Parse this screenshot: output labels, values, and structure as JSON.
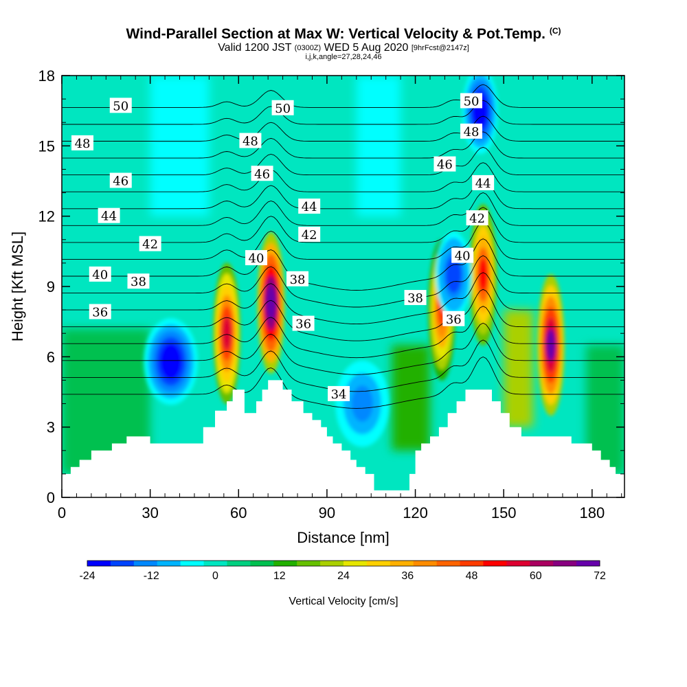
{
  "title": {
    "main": "Wind-Parallel Section at Max W: Vertical Velocity & Pot.Temp.",
    "copyright": "(C)",
    "valid_prefix": "Valid 1200 JST",
    "valid_utc": "(0300Z)",
    "valid_date": "WED 5 Aug 2020",
    "forecast": "[9hrFcst@2147z]",
    "section": "i,j,k,angle=27,28,24,46"
  },
  "chart_data": {
    "type": "heatmap",
    "xlabel": "Distance [nm]",
    "ylabel": "Height [Kft MSL]",
    "xlim": [
      0,
      191
    ],
    "ylim": [
      0,
      18
    ],
    "x_ticks": [
      "0",
      "30",
      "60",
      "90",
      "120",
      "150",
      "180"
    ],
    "y_ticks": [
      "0",
      "3",
      "6",
      "9",
      "12",
      "15",
      "18"
    ],
    "colorbar": {
      "label": "Vertical Velocity [cm/s]",
      "min": -24,
      "max": 72,
      "step": 4,
      "tick_labels": [
        "-24",
        "-12",
        "0",
        "12",
        "24",
        "36",
        "48",
        "60",
        "72"
      ],
      "colors": [
        "#0000ff",
        "#0044ff",
        "#0088ff",
        "#00b4ff",
        "#00ffff",
        "#00e6c0",
        "#00d080",
        "#00c050",
        "#22b000",
        "#66c000",
        "#aad000",
        "#e6e600",
        "#ffd000",
        "#ffb000",
        "#ff8c00",
        "#ff6400",
        "#ff3c00",
        "#ff0000",
        "#dd0030",
        "#aa0060",
        "#880080",
        "#6600aa"
      ]
    },
    "theta_contours": {
      "units": "potential temperature (labels)",
      "labels": [
        {
          "value": "50",
          "x": 20,
          "y": 16.7
        },
        {
          "value": "50",
          "x": 75,
          "y": 16.6
        },
        {
          "value": "50",
          "x": 139,
          "y": 16.9
        },
        {
          "value": "48",
          "x": 7,
          "y": 15.1
        },
        {
          "value": "48",
          "x": 64,
          "y": 15.2
        },
        {
          "value": "48",
          "x": 139,
          "y": 15.6
        },
        {
          "value": "46",
          "x": 20,
          "y": 13.5
        },
        {
          "value": "46",
          "x": 68,
          "y": 13.8
        },
        {
          "value": "46",
          "x": 130,
          "y": 14.2
        },
        {
          "value": "44",
          "x": 16,
          "y": 12.0
        },
        {
          "value": "44",
          "x": 84,
          "y": 12.4
        },
        {
          "value": "44",
          "x": 143,
          "y": 13.4
        },
        {
          "value": "42",
          "x": 30,
          "y": 10.8
        },
        {
          "value": "42",
          "x": 84,
          "y": 11.2
        },
        {
          "value": "42",
          "x": 141,
          "y": 11.9
        },
        {
          "value": "40",
          "x": 13,
          "y": 9.5
        },
        {
          "value": "40",
          "x": 66,
          "y": 10.2
        },
        {
          "value": "40",
          "x": 136,
          "y": 10.3
        },
        {
          "value": "38",
          "x": 26,
          "y": 9.2
        },
        {
          "value": "38",
          "x": 80,
          "y": 9.3
        },
        {
          "value": "38",
          "x": 120,
          "y": 8.5
        },
        {
          "value": "36",
          "x": 13,
          "y": 7.9
        },
        {
          "value": "36",
          "x": 82,
          "y": 7.4
        },
        {
          "value": "36",
          "x": 133,
          "y": 7.6
        },
        {
          "value": "34",
          "x": 94,
          "y": 4.4
        }
      ]
    },
    "terrain_kft": {
      "x": [
        0,
        3,
        6,
        10,
        13,
        17,
        20,
        22,
        25,
        30,
        35,
        40,
        45,
        48,
        52,
        56,
        58,
        60,
        62,
        64,
        66,
        68,
        70,
        71,
        73,
        75,
        78,
        80,
        82,
        85,
        88,
        90,
        92,
        95,
        98,
        100,
        103,
        106,
        110,
        114,
        118,
        120,
        122,
        125,
        128,
        131,
        134,
        137,
        140,
        143,
        146,
        149,
        152,
        156,
        160,
        163,
        166,
        170,
        173,
        176,
        180,
        183,
        186,
        188,
        191
      ],
      "y": [
        1.0,
        1.3,
        1.6,
        2.0,
        2.0,
        2.3,
        2.3,
        2.6,
        2.6,
        2.3,
        2.3,
        2.3,
        2.3,
        3.0,
        3.7,
        4.1,
        4.6,
        4.6,
        3.6,
        3.6,
        4.1,
        4.6,
        5.0,
        5.0,
        5.0,
        4.6,
        4.1,
        4.1,
        3.6,
        3.3,
        3.0,
        2.6,
        2.3,
        2.0,
        1.6,
        1.3,
        1.0,
        0.3,
        0.3,
        0.3,
        1.0,
        2.0,
        2.3,
        2.6,
        3.0,
        3.6,
        4.1,
        4.6,
        4.6,
        4.6,
        4.1,
        3.6,
        3.0,
        2.6,
        2.6,
        2.6,
        2.6,
        2.6,
        2.3,
        2.3,
        2.0,
        1.6,
        1.3,
        1.0,
        1.0
      ]
    },
    "vertical_velocity_features": [
      {
        "kind": "updraft",
        "x": 56,
        "z": 7.0,
        "max": 48
      },
      {
        "kind": "updraft",
        "x": 71,
        "z": 8.3,
        "max": 66
      },
      {
        "kind": "updraft",
        "x": 129,
        "z": 8.0,
        "max": 40
      },
      {
        "kind": "updraft",
        "x": 143,
        "z": 9.5,
        "max": 44
      },
      {
        "kind": "updraft",
        "x": 166,
        "z": 6.5,
        "max": 60
      },
      {
        "kind": "downdraft",
        "x": 37,
        "z": 5.8,
        "min": -24
      },
      {
        "kind": "downdraft",
        "x": 102,
        "z": 4.0,
        "min": -14
      },
      {
        "kind": "downdraft",
        "x": 133,
        "z": 9.5,
        "min": -20
      },
      {
        "kind": "downdraft",
        "x": 142,
        "z": 16.5,
        "min": -24
      }
    ]
  }
}
